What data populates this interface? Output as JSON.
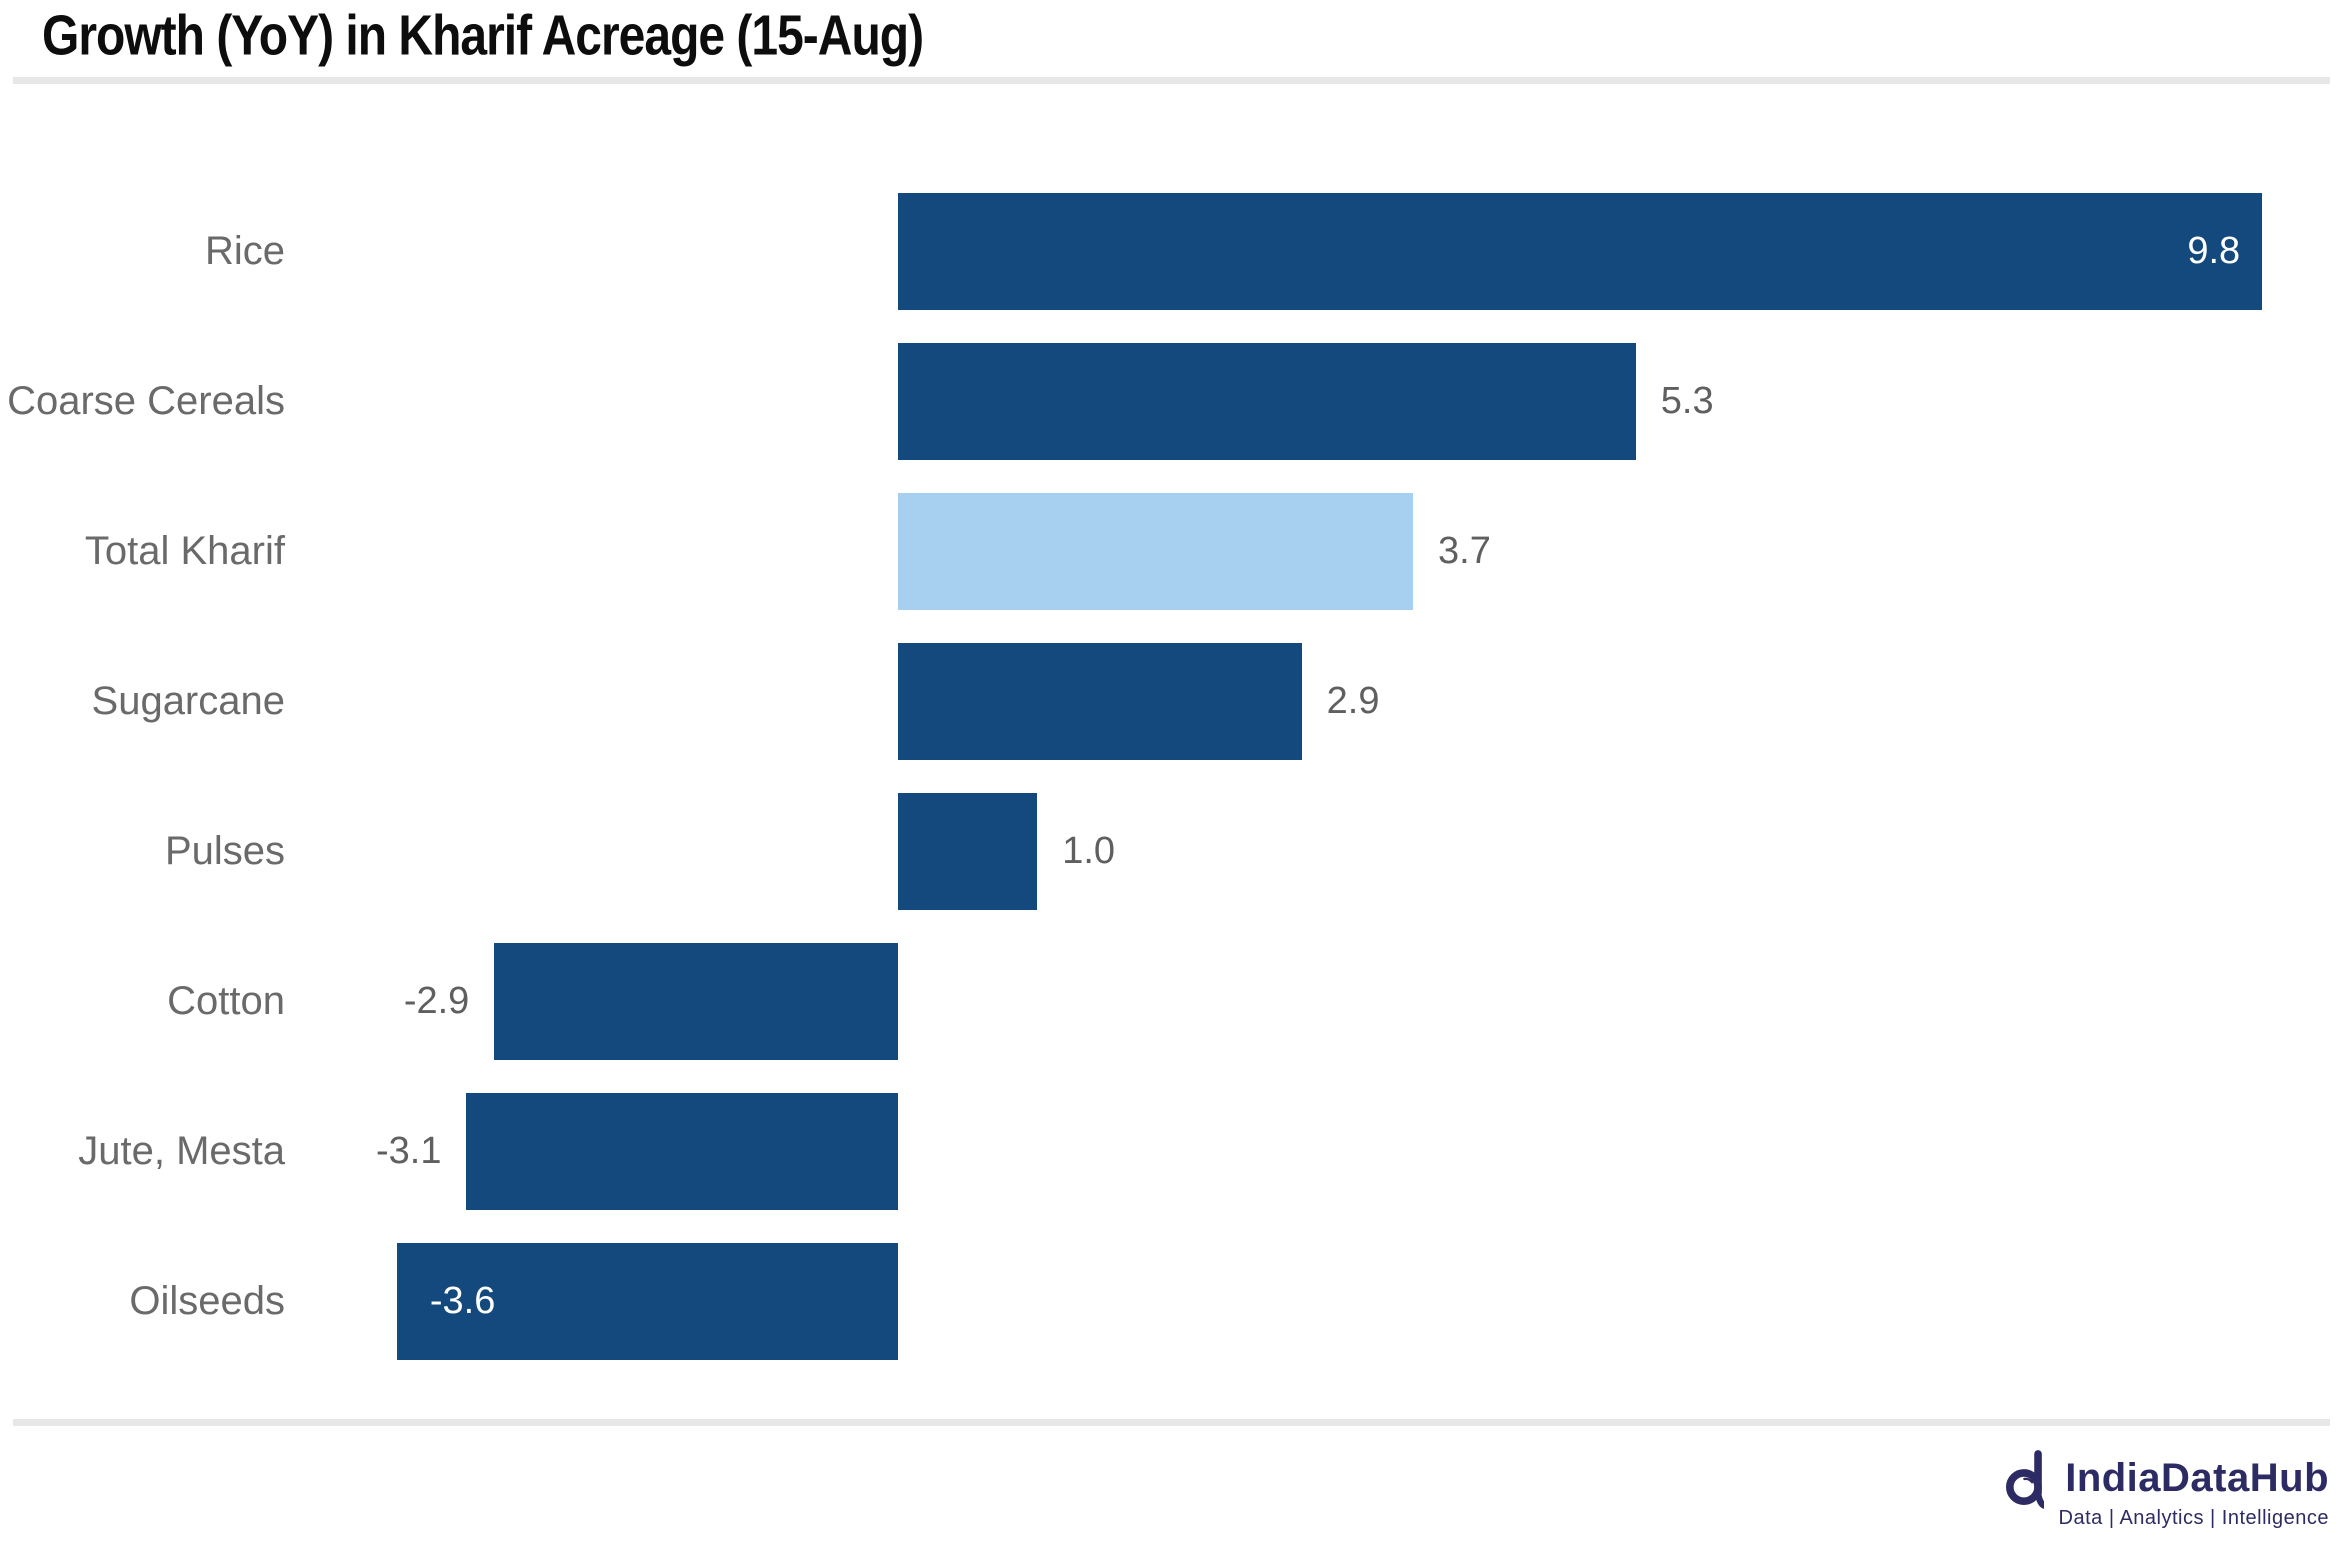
{
  "title": "Growth (YoY) in Kharif Acreage (15-Aug)",
  "colors": {
    "bar": "#14497D",
    "highlight_bar": "#A6CFF0",
    "category_label": "#6A6A6A",
    "value_label": "#5F5F5F",
    "inside_value_label": "#FFFFFF",
    "title_text": "#0D0D0D",
    "divider": "#E7E7E7",
    "logo_navy": "#2D2B63"
  },
  "chart_data": {
    "type": "bar",
    "orientation": "horizontal",
    "title": "Growth (YoY) in Kharif Acreage (15-Aug)",
    "xlabel": "",
    "ylabel": "",
    "categories": [
      "Rice",
      "Coarse Cereals",
      "Total Kharif",
      "Sugarcane",
      "Pulses",
      "Cotton",
      "Jute, Mesta",
      "Oilseeds"
    ],
    "values": [
      9.8,
      5.3,
      3.7,
      2.9,
      1.0,
      -2.9,
      -3.1,
      -3.6
    ],
    "value_labels": [
      "9.8",
      "5.3",
      "3.7",
      "2.9",
      "1.0",
      "-2.9",
      "-3.1",
      "-3.6"
    ],
    "highlighted_category": "Total Kharif",
    "label_placement": [
      "inside-end",
      "outside-end",
      "outside-end",
      "outside-end",
      "outside-end",
      "outside-end",
      "outside-end",
      "inside-start"
    ],
    "axis_visible": false,
    "grid": false,
    "legend": false
  },
  "footer": {
    "brand": "IndiaDataHub",
    "tagline": "Data | Analytics | Intelligence"
  }
}
